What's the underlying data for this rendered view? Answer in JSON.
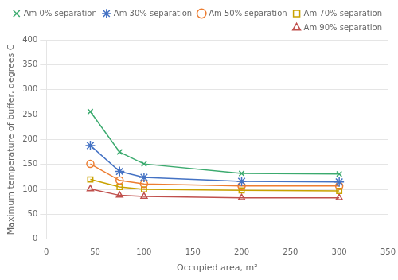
{
  "chart_data": {
    "type": "line",
    "x": [
      45,
      75,
      100,
      200,
      300
    ],
    "series": [
      {
        "name": "Am 0% separation",
        "color": "#3BAA6E",
        "marker": "x",
        "values": [
          256,
          175,
          151,
          132,
          131
        ]
      },
      {
        "name": "Am 30% separation",
        "color": "#4472C4",
        "marker": "*",
        "values": [
          188,
          136,
          124,
          116,
          115
        ]
      },
      {
        "name": "Am 50% separation",
        "color": "#ED7D31",
        "marker": "o",
        "values": [
          151,
          118,
          111,
          107,
          107
        ]
      },
      {
        "name": "Am 70% separation",
        "color": "#C9A200",
        "marker": "s",
        "values": [
          120,
          105,
          100,
          98,
          97
        ]
      },
      {
        "name": "Am 90% separation",
        "color": "#C0504D",
        "marker": "^",
        "values": [
          101,
          88,
          86,
          83,
          83
        ]
      }
    ],
    "x_label": "Occupied area, m²",
    "y_label": "Maximum temperature of buffer, degrees C",
    "xlim": [
      0,
      350
    ],
    "ylim": [
      0,
      400
    ],
    "xticks": [
      0,
      50,
      100,
      150,
      200,
      250,
      300,
      350
    ],
    "yticks": [
      0,
      50,
      100,
      150,
      200,
      250,
      300,
      350,
      400
    ],
    "grid": "y",
    "legend": "upper right"
  }
}
